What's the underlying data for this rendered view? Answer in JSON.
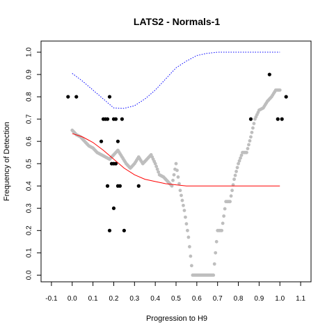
{
  "chart_data": {
    "type": "scatter",
    "title": "LATS2 - Normals-1",
    "xlabel": "Progression to H9",
    "ylabel": "Frequency of Detection",
    "xlim": [
      -0.15,
      1.15
    ],
    "ylim": [
      -0.03,
      1.05
    ],
    "xticks": [
      "-0.1",
      "0.0",
      "0.1",
      "0.2",
      "0.3",
      "0.4",
      "0.5",
      "0.6",
      "0.7",
      "0.8",
      "0.9",
      "1.0",
      "1.1"
    ],
    "yticks": [
      "0.0",
      "0.1",
      "0.2",
      "0.3",
      "0.4",
      "0.5",
      "0.6",
      "0.7",
      "0.8",
      "0.9",
      "1.0"
    ],
    "grid": false,
    "legend": "none",
    "colors": {
      "observed": "#000000",
      "smoothed": "#bebebe",
      "fit": "#ff0000",
      "upper": "#0000ff"
    },
    "series": [
      {
        "kind": "points",
        "color": "observed",
        "x": [
          -0.02,
          0.02,
          0.14,
          0.15,
          0.16,
          0.17,
          0.17,
          0.18,
          0.18,
          0.19,
          0.2,
          0.2,
          0.2,
          0.21,
          0.21,
          0.22,
          0.22,
          0.23,
          0.24,
          0.25,
          0.32,
          0.86,
          0.95,
          0.99,
          1.01,
          1.03
        ],
        "y": [
          0.8,
          0.8,
          0.6,
          0.7,
          0.7,
          0.7,
          0.4,
          0.8,
          0.2,
          0.5,
          0.7,
          0.3,
          0.5,
          0.7,
          0.5,
          0.6,
          0.4,
          0.4,
          0.7,
          0.2,
          0.4,
          0.7,
          0.9,
          0.7,
          0.7,
          0.8
        ]
      },
      {
        "kind": "smoothed",
        "color": "smoothed",
        "x": [
          0.0,
          0.02,
          0.04,
          0.06,
          0.08,
          0.1,
          0.12,
          0.14,
          0.16,
          0.18,
          0.2,
          0.22,
          0.24,
          0.26,
          0.28,
          0.3,
          0.32,
          0.34,
          0.36,
          0.38,
          0.4,
          0.42,
          0.44,
          0.46,
          0.48,
          0.5,
          0.52,
          0.54,
          0.56,
          0.58,
          0.6,
          0.62,
          0.64,
          0.66,
          0.68,
          0.7,
          0.72,
          0.74,
          0.76,
          0.78,
          0.8,
          0.82,
          0.84,
          0.86,
          0.88,
          0.9,
          0.92,
          0.94,
          0.96,
          0.98,
          1.0
        ],
        "y": [
          0.65,
          0.63,
          0.62,
          0.6,
          0.58,
          0.57,
          0.55,
          0.54,
          0.53,
          0.52,
          0.54,
          0.56,
          0.53,
          0.5,
          0.48,
          0.5,
          0.53,
          0.5,
          0.52,
          0.54,
          0.5,
          0.45,
          0.44,
          0.42,
          0.4,
          0.5,
          0.38,
          0.29,
          0.17,
          0.0,
          0.0,
          0.0,
          0.0,
          0.0,
          0.0,
          0.2,
          0.2,
          0.33,
          0.33,
          0.43,
          0.5,
          0.55,
          0.55,
          0.62,
          0.7,
          0.74,
          0.75,
          0.78,
          0.8,
          0.83,
          0.83
        ]
      },
      {
        "kind": "line",
        "color": "fit",
        "x": [
          0.0,
          0.05,
          0.1,
          0.15,
          0.2,
          0.25,
          0.3,
          0.35,
          0.4,
          0.45,
          0.5,
          0.55,
          0.6,
          0.7,
          0.8,
          0.9,
          1.0
        ],
        "y": [
          0.635,
          0.62,
          0.595,
          0.56,
          0.52,
          0.48,
          0.45,
          0.43,
          0.42,
          0.41,
          0.405,
          0.4,
          0.4,
          0.4,
          0.4,
          0.4,
          0.4
        ]
      },
      {
        "kind": "dotted-line",
        "color": "upper",
        "x": [
          0.0,
          0.05,
          0.1,
          0.15,
          0.2,
          0.25,
          0.3,
          0.35,
          0.4,
          0.45,
          0.5,
          0.55,
          0.6,
          0.65,
          0.7,
          0.8,
          0.9,
          1.0
        ],
        "y": [
          0.905,
          0.87,
          0.83,
          0.79,
          0.75,
          0.748,
          0.76,
          0.79,
          0.83,
          0.88,
          0.93,
          0.96,
          0.985,
          0.995,
          1.0,
          1.0,
          1.0,
          1.0
        ]
      }
    ]
  }
}
